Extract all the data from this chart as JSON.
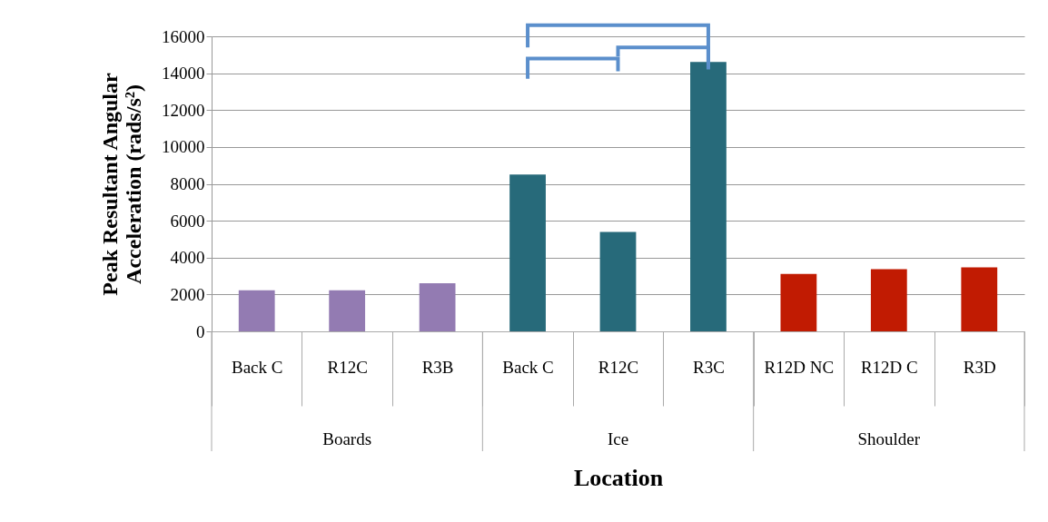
{
  "chart_data": {
    "type": "bar",
    "xlabel": "Location",
    "ylabel": "Peak Resultant Angular Acceleration (rads/s²)",
    "categories": [
      "Back C",
      "R12C",
      "R3B",
      "Back C",
      "R12C",
      "R3C",
      "R12D NC",
      "R12D C",
      "R3D"
    ],
    "values": [
      2230,
      2230,
      2610,
      8510,
      5390,
      14610,
      3120,
      3370,
      3470
    ],
    "colors": [
      "#937bb2",
      "#937bb2",
      "#937bb2",
      "#276a7a",
      "#276a7a",
      "#276a7a",
      "#c11b02",
      "#c11b02",
      "#c11b02"
    ],
    "ylim": [
      0,
      16000
    ],
    "yticks": [
      0,
      2000,
      4000,
      6000,
      8000,
      10000,
      12000,
      14000,
      16000
    ],
    "grid": "y",
    "legend": false,
    "annotations": [
      "Boards",
      "Ice",
      "Shoulder"
    ]
  }
}
